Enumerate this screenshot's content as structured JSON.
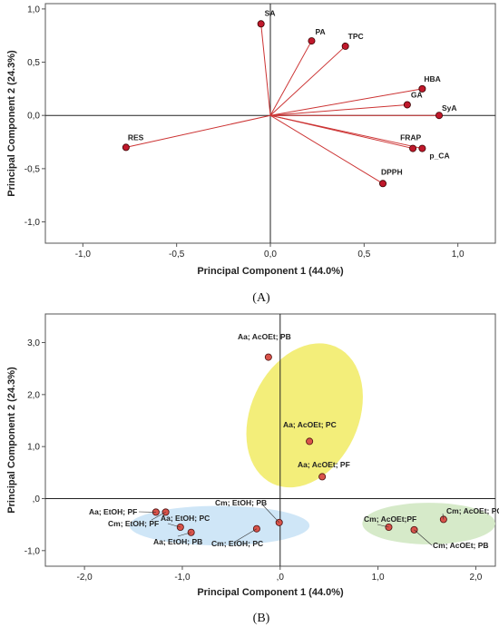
{
  "chart_data": [
    {
      "type": "scatter",
      "subtype": "loading-plot",
      "caption": "(A)",
      "xlabel": "Principal Component 1 (44.0%)",
      "ylabel": "Principal Component 2 (24.3%)",
      "xlim": [
        -1.2,
        1.2
      ],
      "ylim": [
        -1.2,
        1.05
      ],
      "xticks": [
        -1.0,
        -0.5,
        0.0,
        0.5,
        1.0
      ],
      "xtick_labels": [
        "-1,0",
        "-0,5",
        "0,0",
        "0,5",
        "1,0"
      ],
      "yticks": [
        1.0,
        0.5,
        0.0,
        -0.5,
        -1.0
      ],
      "ytick_labels": [
        "1,0",
        "0,5",
        "0,0",
        "-0,5",
        "-1,0"
      ],
      "vector_color": "#cc3333",
      "point_color": "#c0182b",
      "points": [
        {
          "label": "SA",
          "x": -0.05,
          "y": 0.86
        },
        {
          "label": "PA",
          "x": 0.22,
          "y": 0.7
        },
        {
          "label": "TPC",
          "x": 0.4,
          "y": 0.65
        },
        {
          "label": "HBA",
          "x": 0.81,
          "y": 0.25
        },
        {
          "label": "GA",
          "x": 0.73,
          "y": 0.1
        },
        {
          "label": "SyA",
          "x": 0.9,
          "y": 0.0
        },
        {
          "label": "FRAP",
          "x": 0.76,
          "y": -0.31
        },
        {
          "label": "p_CA",
          "x": 0.81,
          "y": -0.31
        },
        {
          "label": "DPPH",
          "x": 0.6,
          "y": -0.64
        },
        {
          "label": "RES",
          "x": -0.77,
          "y": -0.3
        }
      ]
    },
    {
      "type": "scatter",
      "subtype": "score-plot",
      "caption": "(B)",
      "xlabel": "Principal Component 1 (44.0%)",
      "ylabel": "Principal Component 2 (24.3%)",
      "xlim": [
        -2.4,
        2.2
      ],
      "ylim": [
        -1.3,
        3.55
      ],
      "xticks": [
        -2.0,
        -1.0,
        0.0,
        1.0,
        2.0
      ],
      "xtick_labels": [
        "-2,0",
        "-1,0",
        ",0",
        "1,0",
        "2,0"
      ],
      "yticks": [
        3.0,
        2.0,
        1.0,
        0.0,
        -1.0
      ],
      "ytick_labels": [
        "3,0",
        "2,0",
        "1,0",
        ",0",
        "-1,0"
      ],
      "point_color": "#d9534a",
      "clusters": [
        {
          "color": "#f3ee7a",
          "center": [
            0.25,
            1.6
          ],
          "rx": 0.55,
          "ry": 1.45,
          "angle_deg": 25
        },
        {
          "color": "#cfe6f7",
          "center": [
            -0.62,
            -0.52
          ],
          "rx": 0.92,
          "ry": 0.38,
          "angle_deg": 0
        },
        {
          "color": "#d6eac9",
          "center": [
            1.52,
            -0.48
          ],
          "rx": 0.68,
          "ry": 0.4,
          "angle_deg": 0
        }
      ],
      "points": [
        {
          "label": "Aa; AcOEt; PB",
          "x": -0.12,
          "y": 2.72
        },
        {
          "label": "Aa; AcOEt; PC",
          "x": 0.3,
          "y": 1.1
        },
        {
          "label": "Aa; AcOEt; PF",
          "x": 0.43,
          "y": 0.42
        },
        {
          "label": "Aa; EtOH; PF",
          "x": -1.27,
          "y": -0.26
        },
        {
          "label": "Cm; EtOH; PF",
          "x": -1.17,
          "y": -0.26
        },
        {
          "label": "Aa; EtOH; PC",
          "x": -1.02,
          "y": -0.55
        },
        {
          "label": "Aa; EtOH; PB",
          "x": -0.91,
          "y": -0.65
        },
        {
          "label": "Cm; EtOH; PB",
          "x": -0.01,
          "y": -0.46
        },
        {
          "label": "Cm; EtOH; PC",
          "x": -0.24,
          "y": -0.58
        },
        {
          "label": "Cm; AcOEt; PC",
          "x": 1.67,
          "y": -0.4
        },
        {
          "label": "Cm; AcOEt;PF",
          "x": 1.11,
          "y": -0.55
        },
        {
          "label": "Cm; AcOEt; PB",
          "x": 1.37,
          "y": -0.6
        }
      ]
    }
  ]
}
